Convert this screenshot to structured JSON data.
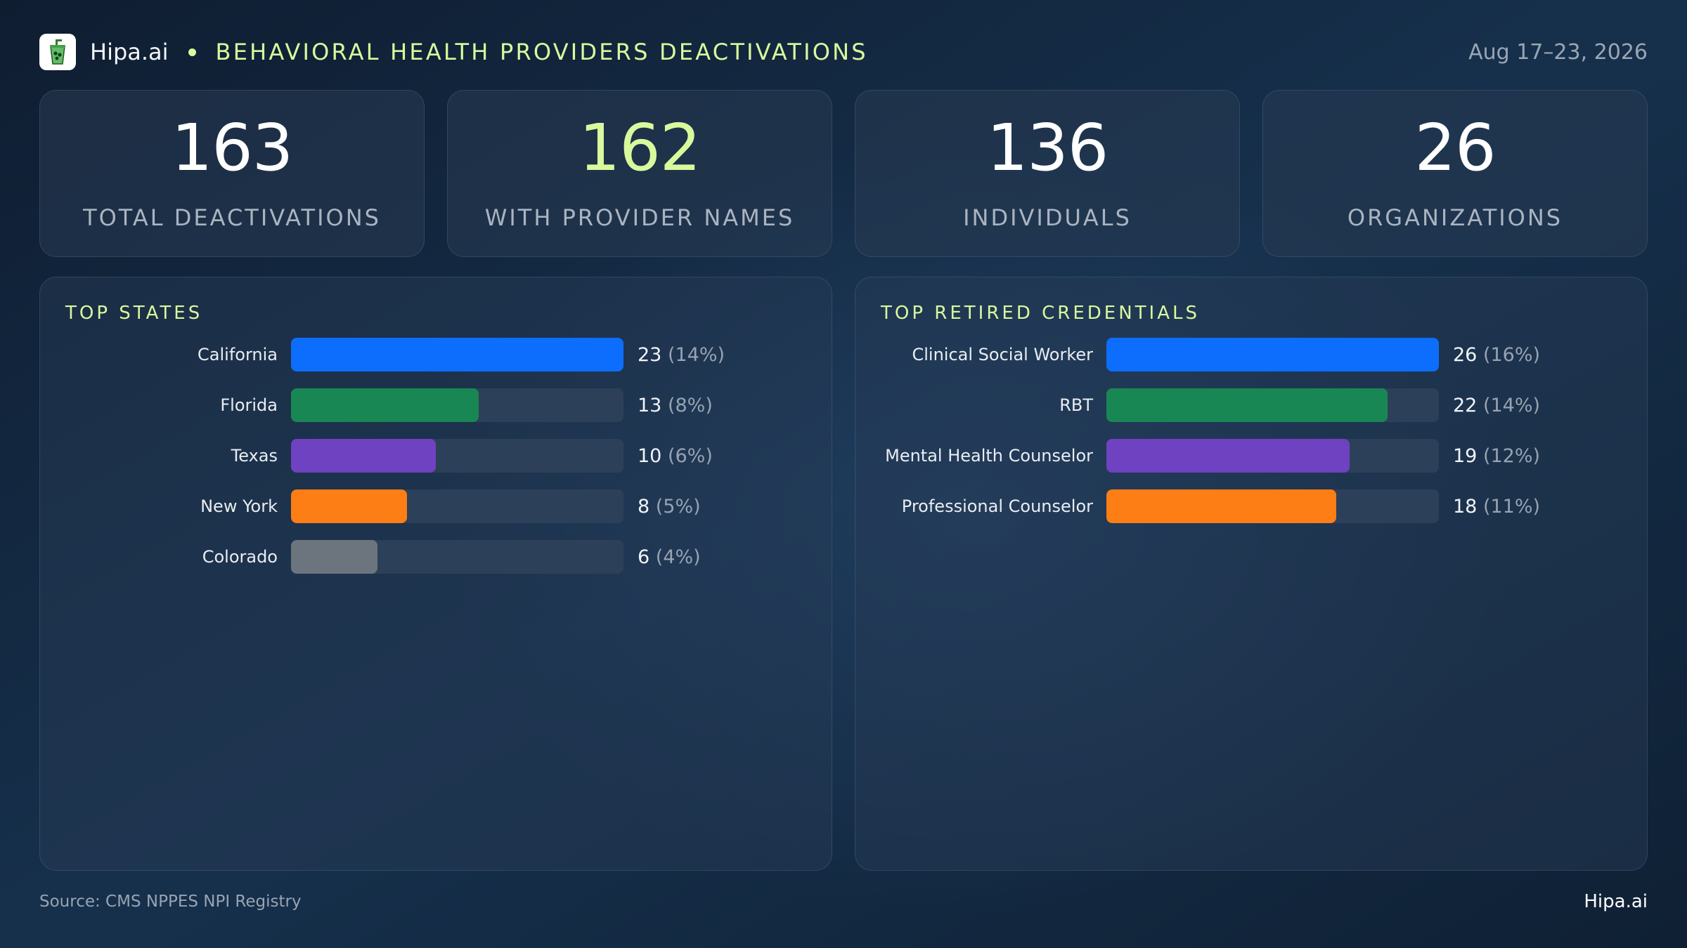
{
  "header": {
    "brand": "Hipa.ai",
    "title": "BEHAVIORAL HEALTH PROVIDERS DEACTIVATIONS",
    "date": "Aug 17–23, 2026",
    "logo_icon": "green-cup-logo-icon"
  },
  "kpis": [
    {
      "value": "163",
      "label": "TOTAL DEACTIVATIONS",
      "color": "#ffffff"
    },
    {
      "value": "162",
      "label": "WITH PROVIDER NAMES",
      "color": "#d9f99d"
    },
    {
      "value": "136",
      "label": "INDIVIDUALS",
      "color": "#ffffff"
    },
    {
      "value": "26",
      "label": "ORGANIZATIONS",
      "color": "#ffffff"
    }
  ],
  "footer": {
    "source": "Source: CMS NPPES NPI Registry",
    "brand": "Hipa.ai"
  },
  "colors": {
    "accent": "#d9f99d",
    "blue": "#0d6efd",
    "green": "#198754",
    "purple": "#6f42c1",
    "orange": "#fd7e14",
    "gray": "#6c757d",
    "track": "#2d4059"
  },
  "chart_data": [
    {
      "type": "bar",
      "orientation": "horizontal",
      "title": "TOP STATES",
      "categories": [
        "California",
        "Florida",
        "Texas",
        "New York",
        "Colorado"
      ],
      "values": [
        23,
        13,
        10,
        8,
        6
      ],
      "percent_labels": [
        "(14%)",
        "(8%)",
        "(6%)",
        "(5%)",
        "(4%)"
      ],
      "max": 23,
      "colors": [
        "#0d6efd",
        "#198754",
        "#6f42c1",
        "#fd7e14",
        "#6c757d"
      ]
    },
    {
      "type": "bar",
      "orientation": "horizontal",
      "title": "TOP RETIRED CREDENTIALS",
      "categories": [
        "Clinical Social Worker",
        "RBT",
        "Mental Health Counselor",
        "Professional Counselor"
      ],
      "values": [
        26,
        22,
        19,
        18
      ],
      "percent_labels": [
        "(16%)",
        "(14%)",
        "(12%)",
        "(11%)"
      ],
      "max": 26,
      "colors": [
        "#0d6efd",
        "#198754",
        "#6f42c1",
        "#fd7e14"
      ]
    }
  ]
}
